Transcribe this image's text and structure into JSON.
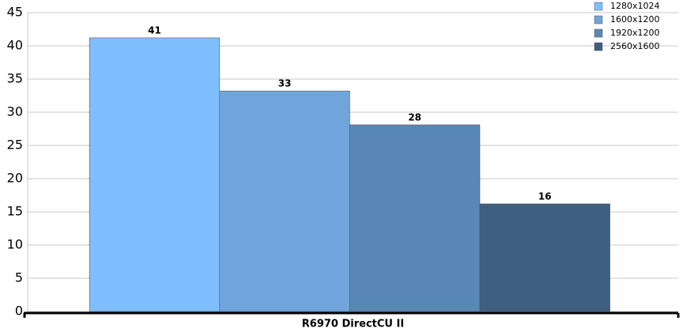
{
  "chart_data": {
    "type": "bar",
    "categories": [
      "R6970 DirectCU II"
    ],
    "series": [
      {
        "name": "1280x1024",
        "color": "#80bfff",
        "values": [
          41.2
        ],
        "value_labels": [
          "41"
        ]
      },
      {
        "name": "1600x1200",
        "color": "#70a5dc",
        "values": [
          33.2
        ],
        "value_labels": [
          "33"
        ]
      },
      {
        "name": "1920x1200",
        "color": "#5a88b6",
        "values": [
          28.1
        ],
        "value_labels": [
          "28"
        ]
      },
      {
        "name": "2560x1600",
        "color": "#3f5f80",
        "values": [
          16.2
        ],
        "value_labels": [
          "16"
        ]
      }
    ],
    "ylim": [
      0,
      45
    ],
    "yticks": [
      0,
      5,
      10,
      15,
      20,
      25,
      30,
      35,
      40,
      45
    ],
    "grid": true,
    "legend": "top-right"
  }
}
